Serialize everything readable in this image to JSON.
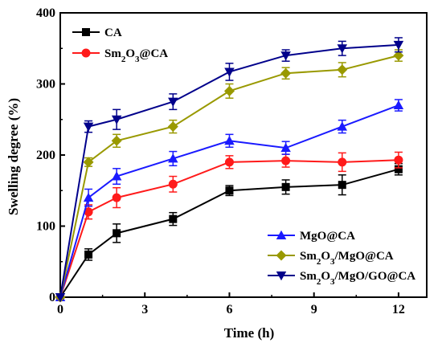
{
  "chart_data": {
    "type": "line",
    "xlabel": "Time (h)",
    "ylabel": "Swelling degree (%)",
    "xlim": [
      0,
      13
    ],
    "ylim": [
      0,
      400
    ],
    "xticks": [
      0,
      3,
      6,
      9,
      12
    ],
    "yticks": [
      0,
      100,
      200,
      300,
      400
    ],
    "grid": false,
    "x": [
      0,
      1,
      2,
      4,
      6,
      8,
      10,
      12
    ],
    "series": [
      {
        "name": "CA",
        "color": "#000000",
        "marker": "square",
        "values": [
          0,
          60,
          90,
          110,
          150,
          155,
          158,
          180
        ],
        "errors": [
          0,
          8,
          13,
          9,
          7,
          10,
          14,
          8
        ]
      },
      {
        "name": "Sm2O3@CA",
        "color": "#ff1a1a",
        "marker": "circle",
        "values": [
          0,
          120,
          140,
          159,
          190,
          192,
          190,
          193
        ],
        "errors": [
          0,
          10,
          14,
          11,
          9,
          9,
          13,
          11
        ]
      },
      {
        "name": "MgO@CA",
        "color": "#1a1aff",
        "marker": "triangle-up",
        "values": [
          0,
          140,
          170,
          195,
          220,
          210,
          240,
          270
        ],
        "errors": [
          0,
          12,
          11,
          10,
          9,
          9,
          9,
          8
        ]
      },
      {
        "name": "Sm2O3/MgO@CA",
        "color": "#999900",
        "marker": "diamond",
        "values": [
          0,
          190,
          220,
          240,
          290,
          315,
          320,
          340
        ],
        "errors": [
          0,
          6,
          9,
          9,
          10,
          8,
          10,
          8
        ]
      },
      {
        "name": "Sm2O3/MgO/GO@CA",
        "color": "#00008b",
        "marker": "triangle-down",
        "values": [
          0,
          240,
          250,
          275,
          317,
          340,
          350,
          355
        ],
        "errors": [
          0,
          8,
          14,
          11,
          12,
          8,
          10,
          10
        ]
      }
    ],
    "legend_groups": [
      {
        "placement": "top-left",
        "entries": [
          "CA",
          "Sm2O3@CA"
        ]
      },
      {
        "placement": "bottom-right",
        "entries": [
          "MgO@CA",
          "Sm2O3/MgO@CA",
          "Sm2O3/MgO/GO@CA"
        ]
      }
    ]
  }
}
